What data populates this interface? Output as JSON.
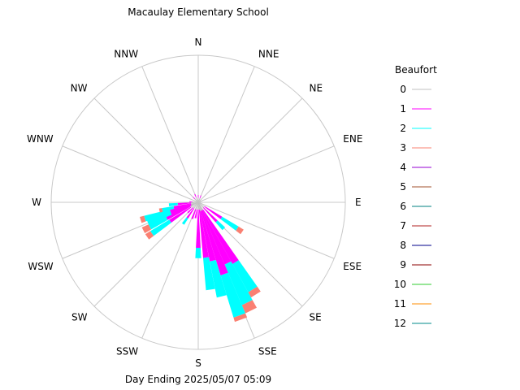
{
  "chart_data": {
    "type": "windrose",
    "title": "Macaulay Elementary School",
    "footer": "Day Ending 2025/05/07 05:09",
    "directions": [
      "N",
      "NNE",
      "NE",
      "ENE",
      "E",
      "ESE",
      "SE",
      "SSE",
      "S",
      "SSW",
      "SW",
      "WSW",
      "W",
      "WNW",
      "NW",
      "NNW"
    ],
    "legend": {
      "title": "Beaufort",
      "entries": [
        {
          "label": "0",
          "color": "#c0c0c0"
        },
        {
          "label": "1",
          "color": "#ff00ff"
        },
        {
          "label": "2",
          "color": "#00ffff"
        },
        {
          "label": "3",
          "color": "#fa8072"
        },
        {
          "label": "4",
          "color": "#9400d3"
        },
        {
          "label": "5",
          "color": "#a0522d"
        },
        {
          "label": "6",
          "color": "#008080"
        },
        {
          "label": "7",
          "color": "#b22222"
        },
        {
          "label": "8",
          "color": "#00008b"
        },
        {
          "label": "9",
          "color": "#8b0000"
        },
        {
          "label": "10",
          "color": "#32cd32"
        },
        {
          "label": "11",
          "color": "#ff8c00"
        },
        {
          "label": "12",
          "color": "#008b8b"
        }
      ]
    },
    "sectors": [
      {
        "dir": 0,
        "bands": [
          0.03,
          0.02
        ]
      },
      {
        "dir": 22,
        "bands": [
          0.03,
          0.02
        ]
      },
      {
        "dir": 45,
        "bands": [
          0.03
        ]
      },
      {
        "dir": 67,
        "bands": [
          0.03
        ]
      },
      {
        "dir": 90,
        "bands": [
          0.03
        ]
      },
      {
        "dir": 112,
        "bands": [
          0.03
        ]
      },
      {
        "dir": 124,
        "bands": [
          0.05,
          0.14,
          0.13,
          0.04
        ]
      },
      {
        "dir": 136,
        "bands": [
          0.05,
          0.13,
          0.07
        ]
      },
      {
        "dir": 148,
        "bands": [
          0.06,
          0.42,
          0.22,
          0.04
        ]
      },
      {
        "dir": 154,
        "bands": [
          0.06,
          0.4,
          0.3,
          0.06
        ]
      },
      {
        "dir": 160,
        "bands": [
          0.06,
          0.46,
          0.3,
          0.03
        ]
      },
      {
        "dir": 166,
        "bands": [
          0.06,
          0.35,
          0.25
        ]
      },
      {
        "dir": 172,
        "bands": [
          0.05,
          0.33,
          0.22
        ]
      },
      {
        "dir": 180,
        "bands": [
          0.05,
          0.26,
          0.07
        ]
      },
      {
        "dir": 190,
        "bands": [
          0.05,
          0.06
        ]
      },
      {
        "dir": 200,
        "bands": [
          0.05,
          0.07
        ]
      },
      {
        "dir": 215,
        "bands": [
          0.05,
          0.08,
          0.05
        ]
      },
      {
        "dir": 225,
        "bands": [
          0.05,
          0.05
        ]
      },
      {
        "dir": 236,
        "bands": [
          0.06,
          0.17,
          0.15,
          0.04
        ]
      },
      {
        "dir": 243,
        "bands": [
          0.06,
          0.18,
          0.13,
          0.05
        ]
      },
      {
        "dir": 248,
        "bands": [
          0.05,
          0.15,
          0.17
        ]
      },
      {
        "dir": 253,
        "bands": [
          0.05,
          0.15,
          0.18,
          0.03
        ]
      },
      {
        "dir": 258,
        "bands": [
          0.05,
          0.12,
          0.08,
          0.02
        ]
      },
      {
        "dir": 265,
        "bands": [
          0.05,
          0.09,
          0.06
        ]
      },
      {
        "dir": 275,
        "bands": [
          0.04,
          0.02
        ]
      },
      {
        "dir": 290,
        "bands": [
          0.03
        ]
      },
      {
        "dir": 315,
        "bands": [
          0.03,
          0.02
        ]
      },
      {
        "dir": 337,
        "bands": [
          0.04,
          0.02
        ]
      }
    ]
  }
}
